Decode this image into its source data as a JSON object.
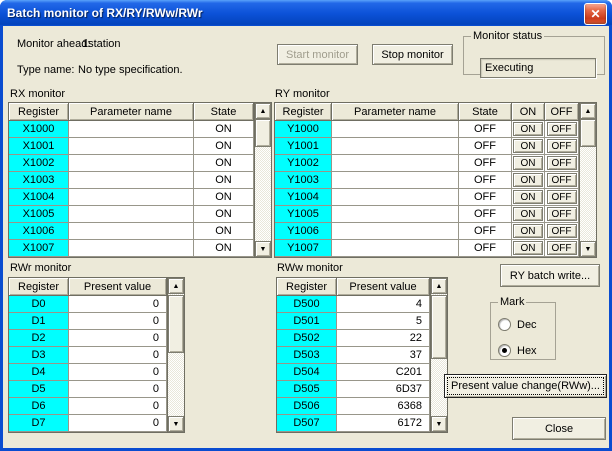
{
  "window": {
    "title": "Batch monitor of RX/RY/RWw/RWr"
  },
  "icons": {
    "close": "✕",
    "scroll_up": "▲",
    "scroll_down": "▼"
  },
  "colors": {
    "titlebar_blue": "#0C52D8",
    "frame_blue": "#0A4CD0",
    "dialog_face": "#ECE9D8",
    "register_cell_cyan": "#00FFFF",
    "close_button_red": "#CC3B1A"
  },
  "header": {
    "monitor_ahead_label": "Monitor ahead:",
    "monitor_ahead_value": "1station",
    "type_name_label": "Type name:",
    "type_name_value": "No type specification.",
    "start_button": "Start monitor",
    "stop_button": "Stop monitor",
    "status_group": "Monitor status",
    "status_value": "Executing"
  },
  "rx": {
    "label": "RX monitor",
    "columns": [
      "Register",
      "Parameter name",
      "State"
    ],
    "rows": [
      {
        "register": "X1000",
        "param": "",
        "state": "ON"
      },
      {
        "register": "X1001",
        "param": "",
        "state": "ON"
      },
      {
        "register": "X1002",
        "param": "",
        "state": "ON"
      },
      {
        "register": "X1003",
        "param": "",
        "state": "ON"
      },
      {
        "register": "X1004",
        "param": "",
        "state": "ON"
      },
      {
        "register": "X1005",
        "param": "",
        "state": "ON"
      },
      {
        "register": "X1006",
        "param": "",
        "state": "ON"
      },
      {
        "register": "X1007",
        "param": "",
        "state": "ON"
      }
    ]
  },
  "ry": {
    "label": "RY monitor",
    "columns": [
      "Register",
      "Parameter name",
      "State",
      "ON",
      "OFF"
    ],
    "on_label": "ON",
    "off_label": "OFF",
    "rows": [
      {
        "register": "Y1000",
        "param": "",
        "state": "OFF"
      },
      {
        "register": "Y1001",
        "param": "",
        "state": "OFF"
      },
      {
        "register": "Y1002",
        "param": "",
        "state": "OFF"
      },
      {
        "register": "Y1003",
        "param": "",
        "state": "OFF"
      },
      {
        "register": "Y1004",
        "param": "",
        "state": "OFF"
      },
      {
        "register": "Y1005",
        "param": "",
        "state": "OFF"
      },
      {
        "register": "Y1006",
        "param": "",
        "state": "OFF"
      },
      {
        "register": "Y1007",
        "param": "",
        "state": "OFF"
      }
    ]
  },
  "rwr": {
    "label": "RWr monitor",
    "columns": [
      "Register",
      "Present value"
    ],
    "rows": [
      {
        "register": "D0",
        "value": "0"
      },
      {
        "register": "D1",
        "value": "0"
      },
      {
        "register": "D2",
        "value": "0"
      },
      {
        "register": "D3",
        "value": "0"
      },
      {
        "register": "D4",
        "value": "0"
      },
      {
        "register": "D5",
        "value": "0"
      },
      {
        "register": "D6",
        "value": "0"
      },
      {
        "register": "D7",
        "value": "0"
      }
    ]
  },
  "rww": {
    "label": "RWw monitor",
    "columns": [
      "Register",
      "Present value"
    ],
    "rows": [
      {
        "register": "D500",
        "value": "4"
      },
      {
        "register": "D501",
        "value": "5"
      },
      {
        "register": "D502",
        "value": "22"
      },
      {
        "register": "D503",
        "value": "37"
      },
      {
        "register": "D504",
        "value": "C201"
      },
      {
        "register": "D505",
        "value": "6D37"
      },
      {
        "register": "D506",
        "value": "6368"
      },
      {
        "register": "D507",
        "value": "6172"
      }
    ]
  },
  "side": {
    "ry_batch_write": "RY batch write...",
    "mark_group": "Mark",
    "dec_label": "Dec",
    "hex_label": "Hex",
    "present_value_change": "Present value change(RWw)...",
    "close_button": "Close"
  }
}
